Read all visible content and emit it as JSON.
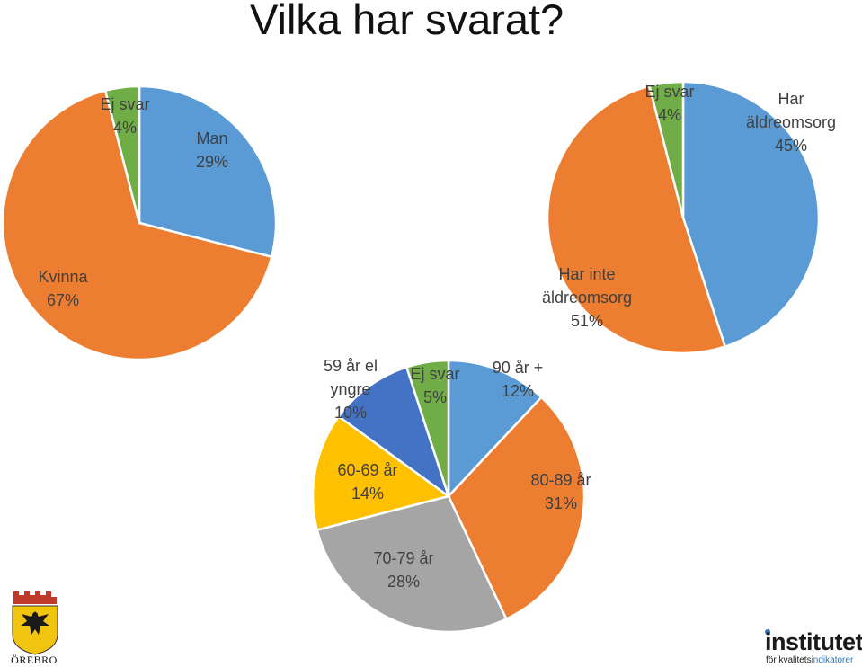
{
  "title": "Vilka har svarat?",
  "colors": {
    "blue": "#5b9bd5",
    "orange": "#ed7d31",
    "green": "#70ad47",
    "gray": "#a5a5a5",
    "yellow": "#ffc000",
    "darkblue": "#4472c4"
  },
  "chart_data": [
    {
      "type": "pie",
      "name": "gender",
      "slices": [
        {
          "label_lines": [
            "Man",
            "29%"
          ],
          "value": 29,
          "color": "#5b9bd5"
        },
        {
          "label_lines": [
            "Kvinna",
            "67%"
          ],
          "value": 67,
          "color": "#ed7d31"
        },
        {
          "label_lines": [
            "Ej svar",
            "4%"
          ],
          "value": 4,
          "color": "#70ad47"
        }
      ]
    },
    {
      "type": "pie",
      "name": "care",
      "slices": [
        {
          "label_lines": [
            "Har",
            "äldreomsorg",
            "45%"
          ],
          "value": 45,
          "color": "#5b9bd5"
        },
        {
          "label_lines": [
            "Har inte",
            "äldreomsorg",
            "51%"
          ],
          "value": 51,
          "color": "#ed7d31"
        },
        {
          "label_lines": [
            "Ej svar",
            "4%"
          ],
          "value": 4,
          "color": "#70ad47"
        }
      ]
    },
    {
      "type": "pie",
      "name": "age",
      "slices": [
        {
          "label_lines": [
            "90 år +",
            "12%"
          ],
          "value": 12,
          "color": "#5b9bd5"
        },
        {
          "label_lines": [
            "80-89 år",
            "31%"
          ],
          "value": 31,
          "color": "#ed7d31"
        },
        {
          "label_lines": [
            "70-79 år",
            "28%"
          ],
          "value": 28,
          "color": "#a5a5a5"
        },
        {
          "label_lines": [
            "60-69 år",
            "14%"
          ],
          "value": 14,
          "color": "#ffc000"
        },
        {
          "label_lines": [
            "59 år el",
            "yngre",
            "10%"
          ],
          "value": 10,
          "color": "#4472c4"
        },
        {
          "label_lines": [
            "Ej svar",
            "5%"
          ],
          "value": 5,
          "color": "#70ad47"
        }
      ]
    }
  ],
  "logos": {
    "left_text": "ÖREBRO",
    "right_word": "institutet",
    "right_tag_a": "för kvalitets",
    "right_tag_b": "indikatorer"
  }
}
